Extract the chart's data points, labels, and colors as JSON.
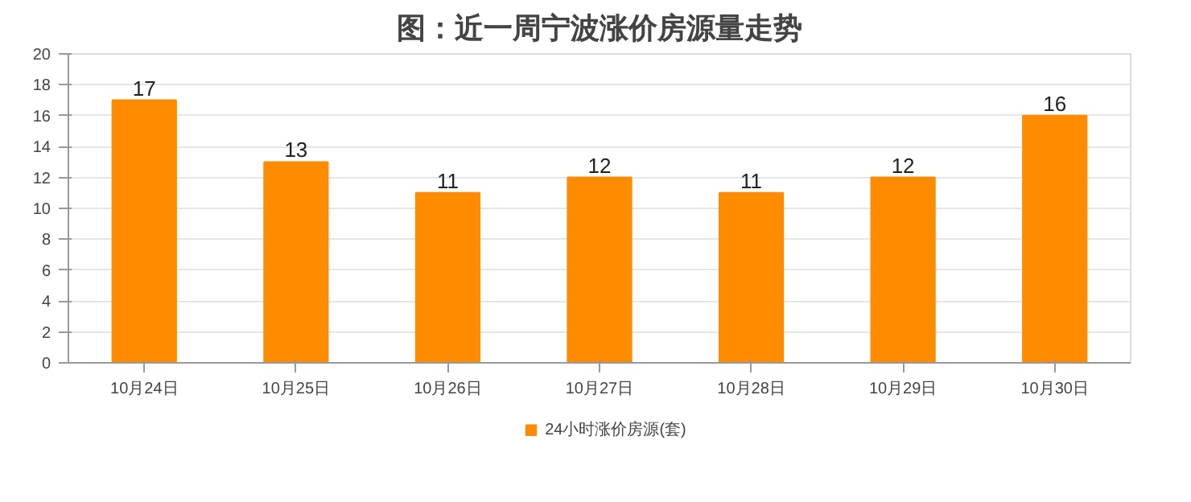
{
  "chart_data": {
    "type": "bar",
    "title": "图：近一周宁波涨价房源量走势",
    "categories": [
      "10月24日",
      "10月25日",
      "10月26日",
      "10月27日",
      "10月28日",
      "10月29日",
      "10月30日"
    ],
    "series": [
      {
        "name": "24小时涨价房源(套)",
        "color": "#ff8c00",
        "values": [
          17,
          13,
          11,
          12,
          11,
          12,
          16
        ]
      }
    ],
    "ylim": [
      0,
      20
    ],
    "yticks": [
      0,
      2,
      4,
      6,
      8,
      10,
      12,
      14,
      16,
      18,
      20
    ],
    "grid": "y",
    "legend": "bottom",
    "data_labels": true
  }
}
